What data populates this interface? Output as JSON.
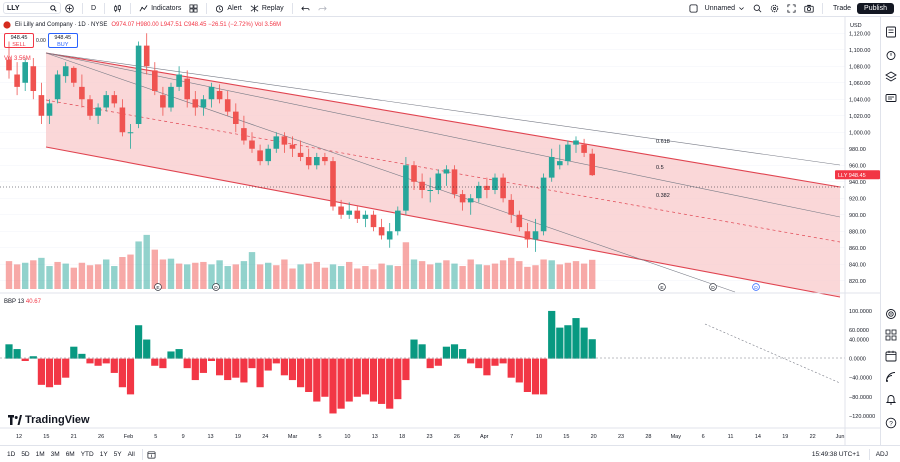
{
  "toolbar": {
    "symbol": "LLY",
    "interval": "D",
    "indicators_label": "Indicators",
    "alert_label": "Alert",
    "replay_label": "Replay",
    "layout_name": "Unnamed",
    "trade_label": "Trade",
    "publish_label": "Publish"
  },
  "legend": {
    "title": "Eli Lilly and Company · 1D · NYSE",
    "ohlc": "O974.07 H980.00 L947.51 C948.45 −26.51 (−2.72%) Vol 3.56M",
    "sell_price": "948.45",
    "sell_label": "SELL",
    "spread": "0.00",
    "buy_price": "948.45",
    "buy_label": "BUY",
    "vol_label": "Vol",
    "vol_value": "3.56M"
  },
  "price_axis": {
    "currency": "USD",
    "ticks": [
      "1,120.00",
      "1,100.00",
      "1,080.00",
      "1,060.00",
      "1,040.00",
      "1,020.00",
      "1,000.00",
      "980.00",
      "960.00",
      "940.00",
      "920.00",
      "900.00",
      "880.00",
      "860.00",
      "840.00",
      "820.00"
    ],
    "last_price_tag": "LLY 948.45",
    "last_price": 948.45
  },
  "bbp_axis": {
    "ticks": [
      "100.0000",
      "60.0000",
      "40.0000",
      "0.0000",
      "−40.0000",
      "−80.0000",
      "−120.0000"
    ],
    "label": "BBP 13",
    "value": "40.67"
  },
  "fib_labels": [
    "0.618",
    "0.5",
    "0.382"
  ],
  "time_axis": {
    "ticks": [
      "12",
      "15",
      "21",
      "26",
      "Feb",
      "5",
      "9",
      "13",
      "19",
      "24",
      "Mar",
      "5",
      "10",
      "13",
      "18",
      "23",
      "26",
      "Apr",
      "7",
      "10",
      "15",
      "20",
      "23",
      "28",
      "May",
      "6",
      "11",
      "14",
      "19",
      "22",
      "Jun"
    ]
  },
  "event_markers": [
    "E",
    "D",
    "E",
    "D"
  ],
  "bottombar": {
    "ranges": [
      "1D",
      "5D",
      "1M",
      "3M",
      "6M",
      "YTD",
      "1Y",
      "5Y",
      "All"
    ],
    "time": "15:49:38 UTC+1",
    "adj": "ADJ"
  },
  "brand": "TradingView",
  "colors": {
    "up": "#26a69a",
    "down": "#ef5350",
    "channel_fill": "#f8c9cb",
    "channel_line": "#e04450",
    "bbp_up": "#089981",
    "bbp_down": "#f23645"
  },
  "chart_data": {
    "type": "candlestick",
    "candles": [
      [
        1088,
        1110,
        1065,
        1075
      ],
      [
        1070,
        1085,
        1045,
        1055
      ],
      [
        1060,
        1090,
        1050,
        1085
      ],
      [
        1080,
        1090,
        1040,
        1050
      ],
      [
        1045,
        1060,
        1010,
        1020
      ],
      [
        1020,
        1040,
        1010,
        1035
      ],
      [
        1040,
        1075,
        1035,
        1070
      ],
      [
        1068,
        1085,
        1060,
        1080
      ],
      [
        1078,
        1080,
        1055,
        1060
      ],
      [
        1055,
        1070,
        1030,
        1040
      ],
      [
        1040,
        1045,
        1015,
        1020
      ],
      [
        1020,
        1035,
        1010,
        1030
      ],
      [
        1030,
        1050,
        1025,
        1045
      ],
      [
        1045,
        1050,
        1030,
        1035
      ],
      [
        1030,
        1040,
        995,
        1000
      ],
      [
        1000,
        1010,
        980,
        1000
      ],
      [
        1010,
        1110,
        1005,
        1105
      ],
      [
        1105,
        1120,
        1070,
        1080
      ],
      [
        1075,
        1085,
        1045,
        1050
      ],
      [
        1045,
        1055,
        1020,
        1030
      ],
      [
        1030,
        1060,
        1025,
        1055
      ],
      [
        1055,
        1080,
        1050,
        1070
      ],
      [
        1065,
        1075,
        1030,
        1040
      ],
      [
        1040,
        1050,
        1020,
        1030
      ],
      [
        1030,
        1045,
        1020,
        1040
      ],
      [
        1040,
        1060,
        1030,
        1055
      ],
      [
        1050,
        1058,
        1035,
        1040
      ],
      [
        1040,
        1050,
        1020,
        1025
      ],
      [
        1025,
        1035,
        1000,
        1010
      ],
      [
        1005,
        1020,
        985,
        990
      ],
      [
        990,
        1000,
        975,
        980
      ],
      [
        978,
        985,
        960,
        965
      ],
      [
        965,
        985,
        960,
        980
      ],
      [
        980,
        1000,
        975,
        995
      ],
      [
        995,
        1000,
        975,
        985
      ],
      [
        985,
        995,
        970,
        980
      ],
      [
        975,
        990,
        965,
        970
      ],
      [
        970,
        980,
        955,
        960
      ],
      [
        960,
        975,
        955,
        970
      ],
      [
        970,
        975,
        960,
        965
      ],
      [
        965,
        970,
        905,
        910
      ],
      [
        910,
        918,
        895,
        900
      ],
      [
        900,
        915,
        895,
        905
      ],
      [
        905,
        910,
        890,
        895
      ],
      [
        895,
        905,
        885,
        900
      ],
      [
        900,
        905,
        880,
        885
      ],
      [
        885,
        895,
        870,
        875
      ],
      [
        870,
        890,
        860,
        880
      ],
      [
        880,
        910,
        875,
        905
      ],
      [
        905,
        970,
        900,
        960
      ],
      [
        960,
        965,
        930,
        940
      ],
      [
        940,
        950,
        920,
        930
      ],
      [
        930,
        945,
        915,
        930
      ],
      [
        930,
        955,
        925,
        950
      ],
      [
        950,
        960,
        935,
        955
      ],
      [
        955,
        960,
        920,
        925
      ],
      [
        925,
        930,
        905,
        915
      ],
      [
        915,
        925,
        900,
        920
      ],
      [
        920,
        940,
        915,
        935
      ],
      [
        935,
        945,
        920,
        930
      ],
      [
        930,
        950,
        925,
        945
      ],
      [
        945,
        950,
        915,
        920
      ],
      [
        918,
        925,
        890,
        900
      ],
      [
        900,
        905,
        880,
        885
      ],
      [
        880,
        890,
        860,
        870
      ],
      [
        870,
        895,
        855,
        880
      ],
      [
        880,
        950,
        875,
        945
      ],
      [
        945,
        980,
        940,
        970
      ],
      [
        960,
        985,
        955,
        965
      ],
      [
        965,
        990,
        960,
        985
      ],
      [
        985,
        995,
        975,
        990
      ],
      [
        985,
        992,
        970,
        975
      ],
      [
        974,
        980,
        947,
        948
      ]
    ],
    "volume": [
      [
        3.4,
        0
      ],
      [
        3.0,
        0
      ],
      [
        3.2,
        1
      ],
      [
        3.5,
        0
      ],
      [
        3.8,
        1
      ],
      [
        2.8,
        1
      ],
      [
        3.3,
        0
      ],
      [
        3.1,
        1
      ],
      [
        2.6,
        0
      ],
      [
        3.2,
        0
      ],
      [
        2.9,
        0
      ],
      [
        3.0,
        0
      ],
      [
        3.6,
        1
      ],
      [
        2.8,
        1
      ],
      [
        3.9,
        0
      ],
      [
        4.2,
        0
      ],
      [
        5.8,
        1
      ],
      [
        6.6,
        1
      ],
      [
        4.8,
        0
      ],
      [
        3.6,
        0
      ],
      [
        3.7,
        1
      ],
      [
        3.1,
        0
      ],
      [
        3.0,
        1
      ],
      [
        3.2,
        0
      ],
      [
        3.3,
        0
      ],
      [
        3.0,
        1
      ],
      [
        3.5,
        1
      ],
      [
        2.8,
        1
      ],
      [
        3.0,
        0
      ],
      [
        3.4,
        1
      ],
      [
        4.5,
        1
      ],
      [
        3.0,
        0
      ],
      [
        3.2,
        1
      ],
      [
        2.9,
        0
      ],
      [
        3.6,
        0
      ],
      [
        2.5,
        0
      ],
      [
        3.0,
        1
      ],
      [
        3.1,
        0
      ],
      [
        3.3,
        0
      ],
      [
        2.6,
        0
      ],
      [
        3.0,
        1
      ],
      [
        2.8,
        1
      ],
      [
        3.3,
        0
      ],
      [
        2.5,
        0
      ],
      [
        2.8,
        0
      ],
      [
        2.4,
        0
      ],
      [
        3.1,
        0
      ],
      [
        2.9,
        1
      ],
      [
        2.8,
        0
      ],
      [
        5.7,
        0
      ],
      [
        3.6,
        1
      ],
      [
        3.4,
        0
      ],
      [
        3.0,
        0
      ],
      [
        3.2,
        1
      ],
      [
        3.5,
        0
      ],
      [
        3.1,
        1
      ],
      [
        2.8,
        0
      ],
      [
        3.6,
        0
      ],
      [
        3.0,
        1
      ],
      [
        2.9,
        0
      ],
      [
        3.1,
        0
      ],
      [
        3.5,
        0
      ],
      [
        3.8,
        0
      ],
      [
        3.4,
        0
      ],
      [
        2.7,
        0
      ],
      [
        2.9,
        0
      ],
      [
        3.6,
        0
      ],
      [
        3.5,
        1
      ],
      [
        3.0,
        0
      ],
      [
        3.2,
        0
      ],
      [
        3.4,
        0
      ],
      [
        3.1,
        0
      ],
      [
        3.56,
        0
      ]
    ],
    "bbp": [
      [
        30
      ],
      [
        20
      ],
      [
        -5
      ],
      [
        5
      ],
      [
        -55
      ],
      [
        -60
      ],
      [
        -55
      ],
      [
        -40
      ],
      [
        25
      ],
      [
        10
      ],
      [
        -10
      ],
      [
        -15
      ],
      [
        -10
      ],
      [
        -30
      ],
      [
        -60
      ],
      [
        -75
      ],
      [
        70
      ],
      [
        40
      ],
      [
        -15
      ],
      [
        -20
      ],
      [
        15
      ],
      [
        20
      ],
      [
        -20
      ],
      [
        -45
      ],
      [
        -30
      ],
      [
        -5
      ],
      [
        -35
      ],
      [
        -45
      ],
      [
        -40
      ],
      [
        -50
      ],
      [
        -20
      ],
      [
        -60
      ],
      [
        -25
      ],
      [
        -10
      ],
      [
        -35
      ],
      [
        -45
      ],
      [
        -60
      ],
      [
        -70
      ],
      [
        -90
      ],
      [
        -80
      ],
      [
        -115
      ],
      [
        -105
      ],
      [
        -90
      ],
      [
        -80
      ],
      [
        -75
      ],
      [
        -90
      ],
      [
        -95
      ],
      [
        -105
      ],
      [
        -85
      ],
      [
        -45
      ],
      [
        40
      ],
      [
        30
      ],
      [
        -20
      ],
      [
        -15
      ],
      [
        25
      ],
      [
        30
      ],
      [
        20
      ],
      [
        -10
      ],
      [
        -20
      ],
      [
        -35
      ],
      [
        -15
      ],
      [
        -10
      ],
      [
        -40
      ],
      [
        -50
      ],
      [
        -70
      ],
      [
        -75
      ],
      [
        -75
      ],
      [
        100
      ],
      [
        65
      ],
      [
        70
      ],
      [
        85
      ],
      [
        65
      ],
      [
        40.67
      ]
    ],
    "ylim": [
      810,
      1130
    ],
    "bbp_ylim": [
      -135,
      125
    ]
  }
}
